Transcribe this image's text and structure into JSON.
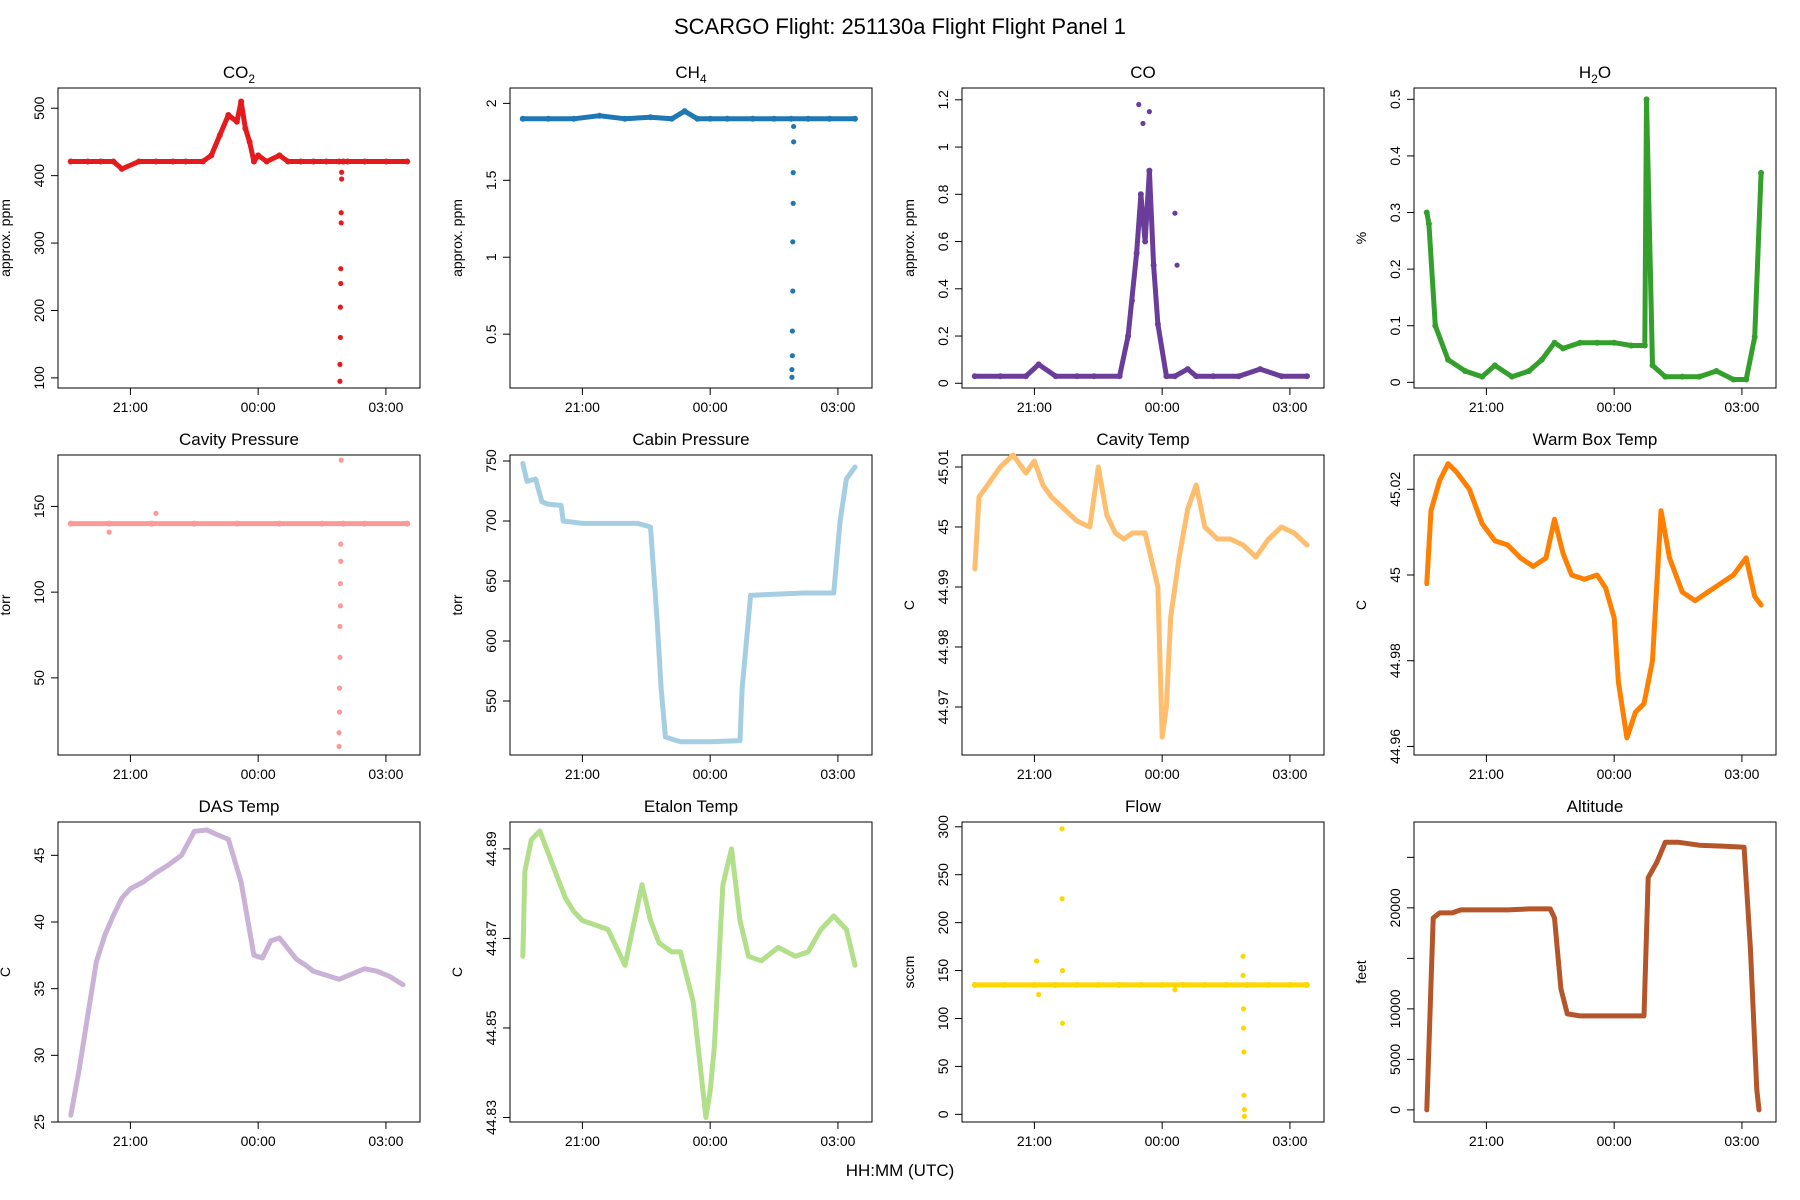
{
  "title": "SCARGO Flight: 251130a  Flight Flight  Panel 1",
  "xlabel": "HH:MM (UTC)",
  "chart_data": [
    {
      "type": "scatter",
      "title": "CO",
      "title_sub": "2",
      "ylabel": "approx. ppm",
      "color": "#e41a1c",
      "xticks": [
        "21:00",
        "00:00",
        "03:00"
      ],
      "ylim": [
        85,
        530
      ],
      "yticks": [
        100,
        200,
        300,
        400,
        500
      ],
      "x": [
        19.6,
        20.0,
        20.3,
        20.6,
        20.8,
        21.2,
        21.6,
        22.0,
        22.3,
        22.7,
        22.9,
        23.1,
        23.3,
        23.5,
        23.6,
        23.7,
        23.8,
        23.9,
        24.0,
        24.2,
        24.5,
        24.7,
        25.0,
        25.3,
        25.6,
        25.9,
        26.0,
        26.1,
        26.5,
        27.0,
        27.5
      ],
      "values": [
        421,
        421,
        421,
        421,
        410,
        421,
        421,
        421,
        421,
        421,
        430,
        460,
        490,
        480,
        510,
        470,
        450,
        421,
        430,
        421,
        430,
        421,
        421,
        421,
        421,
        421,
        421,
        421,
        421,
        421,
        421
      ],
      "outliers": [
        [
          25.92,
          95
        ],
        [
          25.92,
          120
        ],
        [
          25.93,
          160
        ],
        [
          25.93,
          205
        ],
        [
          25.94,
          240
        ],
        [
          25.94,
          262
        ],
        [
          25.95,
          330
        ],
        [
          25.95,
          345
        ],
        [
          25.96,
          395
        ],
        [
          25.96,
          405
        ]
      ]
    },
    {
      "type": "scatter",
      "title": "CH",
      "title_sub": "4",
      "ylabel": "approx. ppm",
      "color": "#1f78b4",
      "xticks": [
        "21:00",
        "00:00",
        "03:00"
      ],
      "ylim": [
        0.15,
        2.1
      ],
      "yticks": [
        0.5,
        1.0,
        1.5,
        2.0
      ],
      "x": [
        19.6,
        20.2,
        20.8,
        21.4,
        22.0,
        22.6,
        23.1,
        23.4,
        23.7,
        24.0,
        24.4,
        25.0,
        25.5,
        25.9,
        26.3,
        26.8,
        27.4
      ],
      "values": [
        1.9,
        1.9,
        1.9,
        1.92,
        1.9,
        1.91,
        1.9,
        1.95,
        1.9,
        1.9,
        1.9,
        1.9,
        1.9,
        1.9,
        1.9,
        1.9,
        1.9
      ],
      "outliers": [
        [
          25.92,
          0.22
        ],
        [
          25.92,
          0.27
        ],
        [
          25.93,
          0.36
        ],
        [
          25.93,
          0.52
        ],
        [
          25.94,
          0.78
        ],
        [
          25.94,
          1.1
        ],
        [
          25.95,
          1.35
        ],
        [
          25.95,
          1.55
        ],
        [
          25.96,
          1.75
        ],
        [
          25.96,
          1.85
        ]
      ]
    },
    {
      "type": "scatter",
      "title": "CO",
      "title_sub": "",
      "ylabel": "approx. ppm",
      "color": "#6a3d9a",
      "xticks": [
        "21:00",
        "00:00",
        "03:00"
      ],
      "ylim": [
        -0.02,
        1.25
      ],
      "yticks": [
        0.0,
        0.2,
        0.4,
        0.6,
        0.8,
        1.0,
        1.2
      ],
      "x": [
        19.6,
        20.2,
        20.8,
        21.1,
        21.5,
        22.0,
        22.4,
        23.0,
        23.2,
        23.4,
        23.5,
        23.6,
        23.7,
        23.8,
        23.9,
        24.1,
        24.3,
        24.6,
        24.8,
        25.2,
        25.8,
        26.3,
        26.8,
        27.4
      ],
      "values": [
        0.03,
        0.03,
        0.03,
        0.08,
        0.03,
        0.03,
        0.03,
        0.03,
        0.2,
        0.55,
        0.8,
        0.6,
        0.9,
        0.5,
        0.25,
        0.03,
        0.03,
        0.06,
        0.03,
        0.03,
        0.03,
        0.06,
        0.03,
        0.03
      ],
      "outliers": [
        [
          23.45,
          1.18
        ],
        [
          23.55,
          1.1
        ],
        [
          23.7,
          1.15
        ],
        [
          24.3,
          0.72
        ],
        [
          24.35,
          0.5
        ],
        [
          23.3,
          0.35
        ]
      ]
    },
    {
      "type": "scatter",
      "title": "H",
      "title_sub": "2",
      "title_end": "O",
      "ylabel": "%",
      "color": "#33a02c",
      "xticks": [
        "21:00",
        "00:00",
        "03:00"
      ],
      "ylim": [
        -0.01,
        0.52
      ],
      "yticks": [
        0.0,
        0.1,
        0.2,
        0.3,
        0.4,
        0.5
      ],
      "x": [
        19.6,
        19.65,
        19.8,
        20.1,
        20.5,
        20.9,
        21.2,
        21.6,
        22.0,
        22.3,
        22.6,
        22.8,
        23.2,
        23.6,
        24.0,
        24.4,
        24.72,
        24.76,
        24.9,
        25.2,
        25.6,
        26.0,
        26.4,
        26.8,
        27.1,
        27.3,
        27.45
      ],
      "values": [
        0.3,
        0.28,
        0.1,
        0.04,
        0.02,
        0.01,
        0.03,
        0.01,
        0.02,
        0.04,
        0.07,
        0.06,
        0.07,
        0.07,
        0.07,
        0.065,
        0.065,
        0.5,
        0.03,
        0.01,
        0.01,
        0.01,
        0.02,
        0.005,
        0.005,
        0.08,
        0.37
      ],
      "outliers": []
    },
    {
      "type": "scatter",
      "title": "Cavity Pressure",
      "title_sub": "",
      "ylabel": "torr",
      "color": "#fb9a99",
      "xticks": [
        "21:00",
        "00:00",
        "03:00"
      ],
      "ylim": [
        5,
        180
      ],
      "yticks": [
        50,
        100,
        150
      ],
      "x": [
        19.6,
        20.5,
        21.5,
        22.5,
        23.5,
        24.5,
        25.5,
        26.0,
        26.5,
        27.5
      ],
      "values": [
        140,
        140,
        140,
        140,
        140,
        140,
        140,
        140,
        140,
        140
      ],
      "outliers": [
        [
          20.5,
          135
        ],
        [
          21.6,
          146
        ],
        [
          25.95,
          177
        ],
        [
          25.94,
          128
        ],
        [
          25.94,
          118
        ],
        [
          25.93,
          105
        ],
        [
          25.93,
          92
        ],
        [
          25.92,
          80
        ],
        [
          25.92,
          62
        ],
        [
          25.91,
          44
        ],
        [
          25.91,
          30
        ],
        [
          25.9,
          18
        ],
        [
          25.9,
          10
        ]
      ]
    },
    {
      "type": "line",
      "title": "Cabin Pressure",
      "title_sub": "",
      "ylabel": "torr",
      "color": "#a6cee3",
      "xticks": [
        "21:00",
        "00:00",
        "03:00"
      ],
      "ylim": [
        505,
        755
      ],
      "yticks": [
        550,
        600,
        650,
        700,
        750
      ],
      "x": [
        19.6,
        19.7,
        19.9,
        20.05,
        20.2,
        20.5,
        20.55,
        21.0,
        21.5,
        22.3,
        22.6,
        22.75,
        22.85,
        22.95,
        23.3,
        24.0,
        24.7,
        24.75,
        24.95,
        25.5,
        26.2,
        26.9,
        27.05,
        27.2,
        27.4
      ],
      "values": [
        748,
        733,
        735,
        716,
        714,
        713,
        700,
        698,
        698,
        698,
        695,
        620,
        560,
        520,
        516,
        516,
        517,
        560,
        638,
        639,
        640,
        640,
        700,
        735,
        745
      ],
      "outliers": []
    },
    {
      "type": "line",
      "title": "Cavity Temp",
      "title_sub": "",
      "ylabel": "C",
      "color": "#fdbf6f",
      "xticks": [
        "21:00",
        "00:00",
        "03:00"
      ],
      "ylim": [
        44.962,
        45.012
      ],
      "yticks": [
        44.97,
        44.98,
        44.99,
        45.0,
        45.01
      ],
      "x": [
        19.6,
        19.7,
        19.9,
        20.2,
        20.5,
        20.8,
        21.0,
        21.2,
        21.4,
        21.7,
        22.0,
        22.3,
        22.5,
        22.7,
        22.9,
        23.1,
        23.3,
        23.6,
        23.9,
        24.0,
        24.1,
        24.2,
        24.4,
        24.6,
        24.8,
        25.0,
        25.3,
        25.6,
        25.9,
        26.2,
        26.5,
        26.8,
        27.1,
        27.4
      ],
      "values": [
        44.993,
        45.005,
        45.007,
        45.01,
        45.012,
        45.009,
        45.011,
        45.007,
        45.005,
        45.003,
        45.001,
        45.0,
        45.01,
        45.002,
        44.999,
        44.998,
        44.999,
        44.999,
        44.99,
        44.965,
        44.97,
        44.985,
        44.995,
        45.003,
        45.007,
        45.0,
        44.998,
        44.998,
        44.997,
        44.995,
        44.998,
        45.0,
        44.999,
        44.997
      ],
      "outliers": []
    },
    {
      "type": "line",
      "title": "Warm Box Temp",
      "title_sub": "",
      "ylabel": "C",
      "color": "#ff7f00",
      "xticks": [
        "21:00",
        "00:00",
        "03:00"
      ],
      "ylim": [
        44.958,
        45.028
      ],
      "yticks": [
        44.96,
        44.98,
        45.0,
        45.02
      ],
      "x": [
        19.6,
        19.7,
        19.9,
        20.1,
        20.3,
        20.6,
        20.9,
        21.2,
        21.5,
        21.8,
        22.1,
        22.4,
        22.6,
        22.8,
        23.0,
        23.3,
        23.6,
        23.8,
        24.0,
        24.1,
        24.3,
        24.5,
        24.7,
        24.9,
        25.1,
        25.3,
        25.6,
        25.9,
        26.2,
        26.5,
        26.8,
        27.1,
        27.3,
        27.45
      ],
      "values": [
        44.998,
        45.015,
        45.022,
        45.026,
        45.024,
        45.02,
        45.012,
        45.008,
        45.007,
        45.004,
        45.002,
        45.004,
        45.013,
        45.005,
        45.0,
        44.999,
        45.0,
        44.997,
        44.99,
        44.975,
        44.962,
        44.968,
        44.97,
        44.98,
        45.015,
        45.004,
        44.996,
        44.994,
        44.996,
        44.998,
        45.0,
        45.004,
        44.995,
        44.993
      ],
      "outliers": []
    },
    {
      "type": "line",
      "title": "DAS Temp",
      "title_sub": "",
      "ylabel": "C",
      "color": "#cab2d6",
      "xticks": [
        "21:00",
        "00:00",
        "03:00"
      ],
      "ylim": [
        25,
        47.5
      ],
      "yticks": [
        25,
        30,
        35,
        40,
        45
      ],
      "x": [
        19.6,
        19.8,
        20.0,
        20.2,
        20.4,
        20.6,
        20.8,
        21.0,
        21.3,
        21.6,
        21.9,
        22.2,
        22.5,
        22.8,
        23.0,
        23.3,
        23.6,
        23.9,
        24.1,
        24.3,
        24.5,
        24.7,
        24.9,
        25.1,
        25.3,
        25.6,
        25.9,
        26.2,
        26.5,
        26.8,
        27.1,
        27.4
      ],
      "values": [
        25.5,
        29,
        33,
        37,
        39,
        40.5,
        41.8,
        42.5,
        43,
        43.7,
        44.3,
        45,
        46.8,
        46.9,
        46.6,
        46.2,
        43,
        37.5,
        37.3,
        38.6,
        38.8,
        38.0,
        37.2,
        36.8,
        36.3,
        36.0,
        35.7,
        36.1,
        36.5,
        36.3,
        35.9,
        35.3
      ],
      "outliers": []
    },
    {
      "type": "line",
      "title": "Etalon Temp",
      "title_sub": "",
      "ylabel": "C",
      "color": "#b2df8a",
      "xticks": [
        "21:00",
        "00:00",
        "03:00"
      ],
      "ylim": [
        44.829,
        44.896
      ],
      "yticks": [
        44.83,
        44.85,
        44.87,
        44.89
      ],
      "x": [
        19.6,
        19.65,
        19.8,
        20.0,
        20.2,
        20.4,
        20.6,
        20.8,
        21.0,
        21.3,
        21.6,
        22.0,
        22.4,
        22.6,
        22.8,
        23.1,
        23.3,
        23.6,
        23.9,
        24.0,
        24.1,
        24.3,
        24.5,
        24.7,
        24.9,
        25.2,
        25.6,
        26.0,
        26.3,
        26.6,
        26.9,
        27.2,
        27.4
      ],
      "values": [
        44.866,
        44.885,
        44.892,
        44.894,
        44.889,
        44.884,
        44.879,
        44.876,
        44.874,
        44.873,
        44.872,
        44.864,
        44.882,
        44.874,
        44.869,
        44.867,
        44.867,
        44.856,
        44.83,
        44.836,
        44.846,
        44.882,
        44.89,
        44.874,
        44.866,
        44.865,
        44.868,
        44.866,
        44.867,
        44.872,
        44.875,
        44.872,
        44.864
      ],
      "outliers": []
    },
    {
      "type": "scatter",
      "title": "Flow",
      "title_sub": "",
      "ylabel": "sccm",
      "color": "#ffd700",
      "xticks": [
        "21:00",
        "00:00",
        "03:00"
      ],
      "ylim": [
        -8,
        305
      ],
      "yticks": [
        0,
        50,
        100,
        150,
        200,
        250,
        300
      ],
      "x": [
        19.6,
        20.3,
        21.0,
        21.5,
        22.0,
        22.5,
        23.0,
        23.5,
        24.0,
        24.5,
        25.0,
        25.5,
        26.0,
        26.5,
        27.0,
        27.4
      ],
      "values": [
        135,
        135,
        135,
        135,
        135,
        135,
        135,
        135,
        135,
        135,
        135,
        135,
        135,
        135,
        135,
        135
      ],
      "outliers": [
        [
          21.05,
          160
        ],
        [
          21.1,
          125
        ],
        [
          21.65,
          298
        ],
        [
          21.65,
          225
        ],
        [
          21.66,
          150
        ],
        [
          21.66,
          95
        ],
        [
          24.3,
          130
        ],
        [
          25.9,
          165
        ],
        [
          25.9,
          145
        ],
        [
          25.91,
          110
        ],
        [
          25.91,
          90
        ],
        [
          25.92,
          65
        ],
        [
          25.92,
          20
        ],
        [
          25.93,
          5
        ],
        [
          25.93,
          -2
        ]
      ]
    },
    {
      "type": "line",
      "title": "Altitude",
      "title_sub": "",
      "ylabel": "feet",
      "color": "#b5562a",
      "xticks": [
        "21:00",
        "00:00",
        "03:00"
      ],
      "ylim": [
        -1200,
        28500
      ],
      "yticks": [
        0,
        5000,
        10000,
        15000,
        20000,
        25000
      ],
      "ytick_labels": [
        "0",
        "5000",
        "10000",
        "",
        "20000",
        ""
      ],
      "x": [
        19.6,
        19.75,
        19.9,
        20.2,
        20.4,
        21.0,
        21.5,
        22.0,
        22.5,
        22.6,
        22.75,
        22.9,
        23.2,
        23.8,
        24.7,
        24.8,
        25.0,
        25.2,
        25.5,
        26.0,
        26.6,
        27.05,
        27.2,
        27.35,
        27.4
      ],
      "values": [
        0,
        19000,
        19500,
        19500,
        19800,
        19800,
        19800,
        19900,
        19900,
        19000,
        12000,
        9500,
        9300,
        9300,
        9300,
        23000,
        24500,
        26500,
        26500,
        26200,
        26100,
        26000,
        16000,
        2000,
        0
      ],
      "outliers": []
    }
  ]
}
